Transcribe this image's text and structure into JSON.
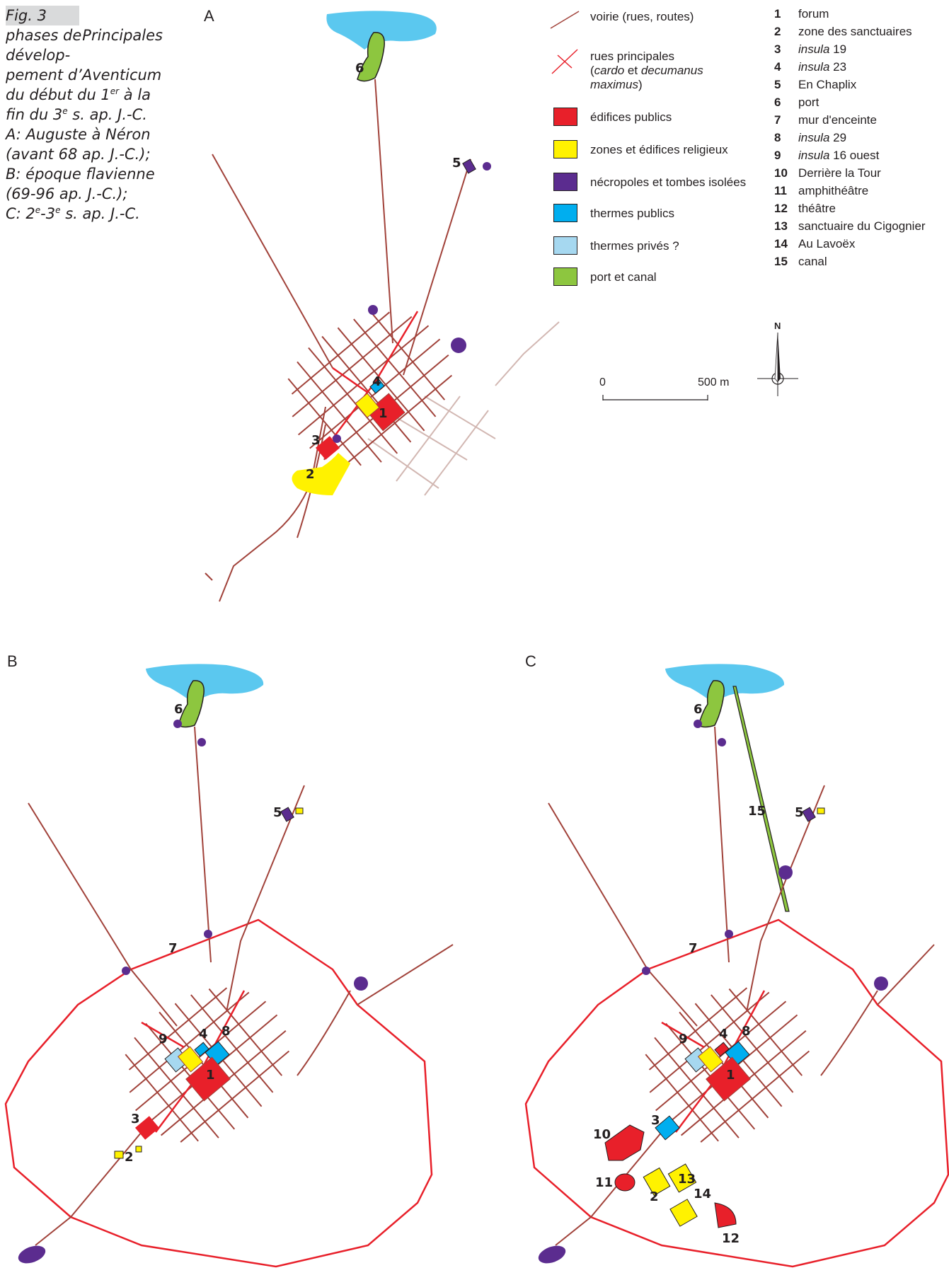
{
  "caption": {
    "fig": "Fig. 3",
    "title_first": "Principales",
    "lines": [
      "phases de dévelop-",
      "pement d’Aventicum",
      "du début du 1",
      "fin du 3",
      "A: Auguste à Néron",
      "(avant 68 ap. J.-C.);",
      "B: époque flavienne",
      "(69-96 ap. J.-C.);",
      "C: 2"
    ],
    "line3_sup": "er",
    "line3_tail": " à la",
    "line4_sup": "e",
    "line4_tail": " s. ap. J.-C.",
    "line9_sup1": "e",
    "line9_mid": "-3",
    "line9_sup2": "e",
    "line9_tail": " s. ap. J.-C."
  },
  "panels": {
    "a": "A",
    "b": "B",
    "c": "C"
  },
  "legend": [
    {
      "id": "roads",
      "label": "voirie (rues, routes)",
      "swatch": "line",
      "color": "#a1423a"
    },
    {
      "id": "main-streets",
      "label": "rues principales",
      "label2_a": "(",
      "label2_b": "cardo",
      "label2_c": " et ",
      "label2_d": "decumanus",
      "label3": "maximus",
      "label3_tail": ")",
      "swatch": "cross",
      "color": "#e8202a"
    },
    {
      "id": "public",
      "label": "édifices publics",
      "color": "#e8202a"
    },
    {
      "id": "religious",
      "label": "zones et édifices religieux",
      "color": "#fff200"
    },
    {
      "id": "necropolis",
      "label": "nécropoles et tombes isolées",
      "color": "#5b2c8f"
    },
    {
      "id": "public-baths",
      "label": "thermes publics",
      "color": "#00aeef"
    },
    {
      "id": "private-baths",
      "label": "thermes privés ?",
      "color": "#a6d8f0"
    },
    {
      "id": "port",
      "label": "port et canal",
      "color": "#8dc63f"
    }
  ],
  "sites": [
    {
      "n": "1",
      "name": "forum"
    },
    {
      "n": "2",
      "name": "zone des sanctuaires"
    },
    {
      "n": "3",
      "name_italic": "insula",
      "name": " 19"
    },
    {
      "n": "4",
      "name_italic": "insula",
      "name": " 23"
    },
    {
      "n": "5",
      "name": "En Chaplix"
    },
    {
      "n": "6",
      "name": "port"
    },
    {
      "n": "7",
      "name": "mur d'enceinte"
    },
    {
      "n": "8",
      "name_italic": "insula",
      "name": " 29"
    },
    {
      "n": "9",
      "name_italic": "insula",
      "name": " 16 ouest"
    },
    {
      "n": "10",
      "name": "Derrière la Tour"
    },
    {
      "n": "11",
      "name": "amphithéâtre"
    },
    {
      "n": "12",
      "name": "théâtre"
    },
    {
      "n": "13",
      "name": "sanctuaire du Cigognier"
    },
    {
      "n": "14",
      "name": "Au Lavoëx"
    },
    {
      "n": "15",
      "name": "canal"
    }
  ],
  "scale": {
    "start": "0",
    "end": "500 m"
  },
  "north": "N",
  "map_labels": {
    "a": [
      "6",
      "5",
      "4",
      "1",
      "3",
      "2"
    ],
    "b": [
      "6",
      "5",
      "7",
      "9",
      "4",
      "8",
      "1",
      "3",
      "2"
    ],
    "c": [
      "6",
      "15",
      "5",
      "7",
      "9",
      "4",
      "8",
      "1",
      "10",
      "3",
      "13",
      "11",
      "2",
      "14",
      "12"
    ]
  },
  "colors": {
    "road": "#a1423a",
    "road_light": "#d2b7b2",
    "wall": "#e8202a",
    "lake": "#5bc8ef"
  }
}
